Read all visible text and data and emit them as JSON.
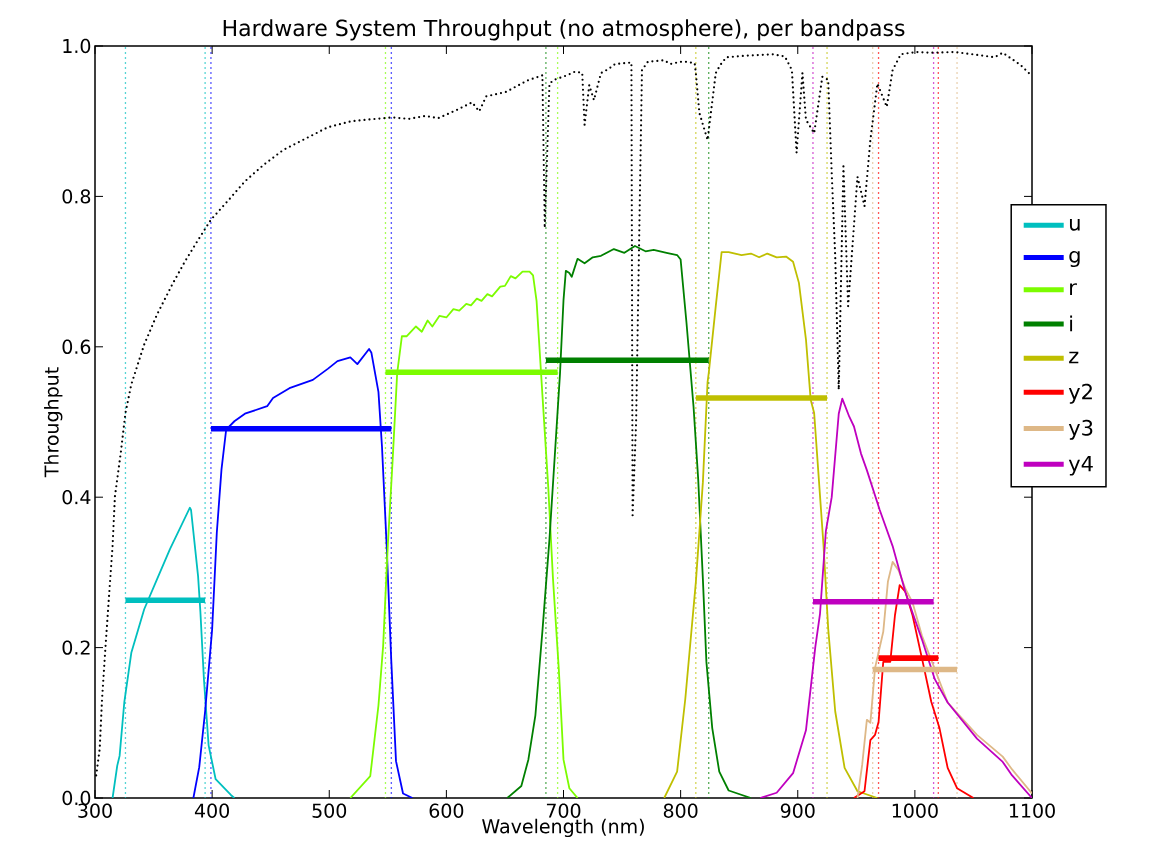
{
  "chart_data": {
    "type": "line",
    "title": "Hardware System Throughput (no atmosphere), per bandpass",
    "xlabel": "Wavelength (nm)",
    "ylabel": "Throughput",
    "xlim": [
      300,
      1100
    ],
    "ylim": [
      0,
      1
    ],
    "xticks": [
      300,
      400,
      500,
      600,
      700,
      800,
      900,
      1000,
      1100
    ],
    "yticks": [
      {
        "value": 0,
        "label": "0.0"
      },
      {
        "value": 0.2,
        "label": "0.2"
      },
      {
        "value": 0.4,
        "label": "0.4"
      },
      {
        "value": 0.6,
        "label": "0.6"
      },
      {
        "value": 0.8,
        "label": "0.8"
      },
      {
        "value": 1,
        "label": "1.0"
      }
    ],
    "legend": "right",
    "series": [
      {
        "name": "u",
        "color": "#00bfbf",
        "x": [
          315,
          319,
          321,
          325,
          331,
          342,
          353,
          364,
          381,
          382,
          388,
          390,
          393,
          397,
          403,
          416,
          419
        ],
        "values": [
          0,
          0.043,
          0.056,
          0.127,
          0.193,
          0.251,
          0.291,
          0.331,
          0.386,
          0.383,
          0.295,
          0.247,
          0.158,
          0.07,
          0.025,
          0.004,
          0
        ]
      },
      {
        "name": "g",
        "color": "#0000ff",
        "x": [
          384,
          389,
          394,
          400,
          404,
          408,
          412,
          419,
          428,
          447,
          452,
          466,
          486,
          499,
          507,
          518,
          524,
          534,
          536,
          542,
          545,
          549,
          553,
          557,
          563,
          571
        ],
        "values": [
          0,
          0.041,
          0.115,
          0.224,
          0.353,
          0.437,
          0.49,
          0.501,
          0.511,
          0.521,
          0.532,
          0.545,
          0.556,
          0.571,
          0.581,
          0.586,
          0.577,
          0.597,
          0.592,
          0.54,
          0.468,
          0.336,
          0.181,
          0.049,
          0.006,
          0
        ]
      },
      {
        "name": "r",
        "color": "#7cfc00",
        "x": [
          518,
          535,
          542,
          546,
          550,
          554,
          558,
          562,
          566,
          574,
          579,
          584,
          588,
          594,
          600,
          606,
          611,
          617,
          621,
          626,
          630,
          635,
          639,
          646,
          650,
          655,
          659,
          665,
          671,
          674,
          677,
          682,
          687,
          691,
          696,
          700,
          705,
          712
        ],
        "values": [
          0,
          0.029,
          0.123,
          0.202,
          0.336,
          0.446,
          0.565,
          0.614,
          0.614,
          0.627,
          0.62,
          0.635,
          0.627,
          0.641,
          0.639,
          0.65,
          0.648,
          0.657,
          0.655,
          0.664,
          0.661,
          0.67,
          0.667,
          0.68,
          0.681,
          0.694,
          0.691,
          0.7,
          0.7,
          0.695,
          0.661,
          0.536,
          0.413,
          0.292,
          0.171,
          0.051,
          0.013,
          0
        ]
      },
      {
        "name": "i",
        "color": "#008000",
        "x": [
          652,
          664,
          670,
          676,
          682,
          688,
          693,
          697,
          700,
          702,
          705,
          707,
          712,
          718,
          725,
          732,
          743,
          752,
          761,
          770,
          777,
          788,
          797,
          800,
          805,
          811,
          815,
          819,
          822,
          827,
          833,
          841,
          860
        ],
        "values": [
          0,
          0.016,
          0.051,
          0.11,
          0.222,
          0.344,
          0.466,
          0.564,
          0.662,
          0.701,
          0.698,
          0.693,
          0.717,
          0.711,
          0.719,
          0.721,
          0.73,
          0.725,
          0.734,
          0.727,
          0.729,
          0.725,
          0.722,
          0.716,
          0.632,
          0.521,
          0.424,
          0.291,
          0.181,
          0.093,
          0.035,
          0.01,
          0
        ]
      },
      {
        "name": "z",
        "color": "#bfbf00",
        "x": [
          786,
          797,
          804,
          813,
          819,
          823,
          824,
          830,
          835,
          841,
          852,
          860,
          867,
          874,
          882,
          890,
          896,
          901,
          907,
          911,
          914,
          918,
          922,
          926,
          932,
          940,
          951,
          968
        ],
        "values": [
          0,
          0.035,
          0.132,
          0.287,
          0.42,
          0.553,
          0.565,
          0.654,
          0.726,
          0.726,
          0.722,
          0.724,
          0.719,
          0.724,
          0.719,
          0.72,
          0.713,
          0.685,
          0.61,
          0.53,
          0.512,
          0.424,
          0.336,
          0.225,
          0.115,
          0.04,
          0.009,
          0
        ]
      },
      {
        "name": "y2",
        "color": "#ff0000",
        "x": [
          948,
          957,
          962,
          966,
          969,
          973,
          979,
          983,
          987,
          992,
          998,
          1006,
          1014,
          1021,
          1028,
          1036,
          1050
        ],
        "values": [
          0,
          0.009,
          0.077,
          0.084,
          0.101,
          0.181,
          0.181,
          0.243,
          0.283,
          0.274,
          0.243,
          0.186,
          0.128,
          0.093,
          0.04,
          0.013,
          0
        ]
      },
      {
        "name": "y3",
        "color": "#deb887",
        "x": [
          951,
          955,
          959,
          962,
          966,
          973,
          977,
          981,
          986,
          992,
          998,
          1006,
          1017,
          1028,
          1053,
          1075,
          1083,
          1100
        ],
        "values": [
          0,
          0.044,
          0.104,
          0.1,
          0.173,
          0.221,
          0.288,
          0.314,
          0.303,
          0.278,
          0.26,
          0.216,
          null,
          0.127,
          0.084,
          0.055,
          0.038,
          0.006
        ]
      },
      {
        "name": "y4",
        "color": "#bf00bf",
        "x": [
          868,
          882,
          896,
          907,
          915,
          919,
          924,
          929,
          935,
          938,
          944,
          948,
          954,
          959,
          970,
          981,
          992,
          1006,
          1017,
          1028,
          1053,
          1075,
          1083,
          1100
        ],
        "values": [
          0,
          0.007,
          0.033,
          0.09,
          0.201,
          0.245,
          0.355,
          0.4,
          0.511,
          0.531,
          0.507,
          0.494,
          0.458,
          0.436,
          0.383,
          0.335,
          0.273,
          0.211,
          0.158,
          0.127,
          0.079,
          0.048,
          0.03,
          0
        ]
      },
      {
        "color": "#000000",
        "line_style": "dotted",
        "x": [
          301,
          304,
          306,
          309,
          312,
          315,
          317,
          322,
          326,
          331,
          342,
          353,
          366,
          377,
          388,
          399,
          414,
          428,
          444,
          461,
          480,
          499,
          519,
          539,
          554,
          568,
          582,
          593,
          609,
          622,
          628,
          634,
          651,
          669,
          682,
          684,
          688,
          692,
          703,
          710,
          716,
          718,
          722,
          726,
          732,
          738,
          744,
          758,
          759,
          762,
          767,
          772,
          786,
          791,
          800,
          805,
          812,
          813,
          816,
          823,
          830,
          834,
          839,
          855,
          879,
          889,
          895,
          899,
          904,
          907,
          914,
          921,
          926,
          929,
          932,
          935,
          939,
          943,
          951,
          957,
          962,
          968,
          976,
          981,
          988,
          1001,
          1014,
          1034,
          1054,
          1068,
          1075,
          1090,
          1100
        ],
        "values": [
          0.03,
          0.065,
          0.131,
          0.202,
          0.269,
          0.335,
          0.401,
          0.459,
          0.512,
          0.55,
          0.603,
          0.643,
          0.683,
          0.714,
          0.742,
          0.769,
          0.795,
          0.82,
          0.842,
          0.862,
          0.877,
          0.892,
          0.9,
          0.903,
          0.905,
          0.903,
          0.907,
          0.904,
          0.915,
          0.925,
          0.913,
          0.933,
          0.939,
          0.954,
          0.961,
          0.758,
          0.95,
          0.955,
          0.961,
          0.966,
          0.964,
          0.895,
          0.948,
          0.928,
          0.964,
          0.969,
          0.976,
          0.978,
          0.376,
          0.5,
          0.968,
          0.979,
          0.981,
          0.976,
          0.979,
          0.979,
          0.977,
          0.964,
          0.911,
          0.875,
          0.964,
          0.975,
          0.985,
          0.987,
          0.989,
          0.986,
          0.968,
          0.858,
          0.964,
          0.902,
          0.884,
          0.959,
          0.955,
          0.831,
          0.72,
          0.543,
          0.84,
          0.654,
          0.826,
          0.787,
          0.875,
          0.95,
          0.919,
          0.968,
          0.989,
          0.992,
          0.991,
          0.992,
          0.988,
          0.985,
          0.991,
          0.975,
          0.96
        ]
      },
      {
        "color": "#00bfbf",
        "x": [
          326,
          394
        ],
        "values": [
          0.263,
          0.263
        ]
      },
      {
        "color": "#0000ff",
        "x": [
          399,
          553
        ],
        "values": [
          0.491,
          0.491
        ]
      },
      {
        "color": "#7cfc00",
        "x": [
          548,
          695
        ],
        "values": [
          0.566,
          0.566
        ]
      },
      {
        "color": "#008000",
        "x": [
          685,
          824
        ],
        "values": [
          0.582,
          0.582
        ]
      },
      {
        "color": "#bfbf00",
        "x": [
          813,
          925
        ],
        "values": [
          0.532,
          0.532
        ]
      },
      {
        "color": "#ff0000",
        "x": [
          969,
          1020
        ],
        "values": [
          0.186,
          0.186
        ]
      },
      {
        "color": "#deb887",
        "x": [
          964,
          1036
        ],
        "values": [
          0.171,
          0.171
        ]
      },
      {
        "color": "#bf00bf",
        "x": [
          913,
          1016
        ],
        "values": [
          0.261,
          0.261
        ]
      }
    ],
    "ref_lines": [
      {
        "axis": "x",
        "value": 326,
        "color": "#00bfbf",
        "line_style": "dotted"
      },
      {
        "axis": "x",
        "value": 394,
        "color": "#00bfbf",
        "line_style": "dotted"
      },
      {
        "axis": "x",
        "value": 399,
        "color": "#0000ff",
        "line_style": "dotted"
      },
      {
        "axis": "x",
        "value": 553,
        "color": "#0000ff",
        "line_style": "dotted"
      },
      {
        "axis": "x",
        "value": 548,
        "color": "#7cfc00",
        "line_style": "dotted"
      },
      {
        "axis": "x",
        "value": 695,
        "color": "#7cfc00",
        "line_style": "dotted"
      },
      {
        "axis": "x",
        "value": 685,
        "color": "#008000",
        "line_style": "dotted"
      },
      {
        "axis": "x",
        "value": 824,
        "color": "#008000",
        "line_style": "dotted"
      },
      {
        "axis": "x",
        "value": 813,
        "color": "#bfbf00",
        "line_style": "dotted"
      },
      {
        "axis": "x",
        "value": 925,
        "color": "#bfbf00",
        "line_style": "dotted"
      },
      {
        "axis": "x",
        "value": 969,
        "color": "#ff0000",
        "line_style": "dotted"
      },
      {
        "axis": "x",
        "value": 1020,
        "color": "#ff0000",
        "line_style": "dotted"
      },
      {
        "axis": "x",
        "value": 964,
        "color": "#deb887",
        "line_style": "dotted"
      },
      {
        "axis": "x",
        "value": 1036,
        "color": "#deb887",
        "line_style": "dotted"
      },
      {
        "axis": "x",
        "value": 913,
        "color": "#bf00bf",
        "line_style": "dotted"
      },
      {
        "axis": "x",
        "value": 1016,
        "color": "#bf00bf",
        "line_style": "dotted"
      }
    ]
  }
}
